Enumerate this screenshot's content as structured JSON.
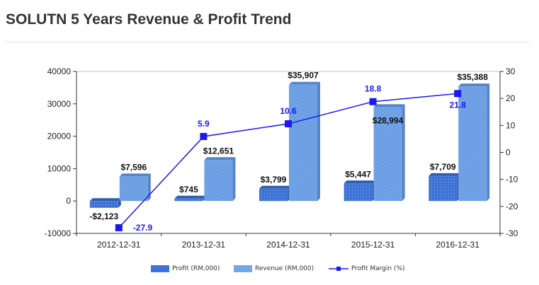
{
  "page": {
    "title": "SOLUTN 5 Years Revenue & Profit Trend"
  },
  "colors": {
    "profit": "#3e73d6",
    "revenue": "#75a6e8",
    "margin_line": "#1a1aee",
    "axis": "#333333",
    "plot_border": "#c0c0c0"
  },
  "chart_data": {
    "type": "bar",
    "categories": [
      "2012-12-31",
      "2013-12-31",
      "2014-12-31",
      "2015-12-31",
      "2016-12-31"
    ],
    "series": [
      {
        "name": "Profit (RM,000)",
        "kind": "bar",
        "axis": "left",
        "values": [
          -2123,
          745,
          3799,
          5447,
          7709
        ],
        "labels": [
          "-$2,123",
          "$745",
          "$3,799",
          "$5,447",
          "$7,709"
        ]
      },
      {
        "name": "Revenue (RM,000)",
        "kind": "bar",
        "axis": "left",
        "values": [
          7596,
          12651,
          35907,
          28994,
          35388
        ],
        "labels": [
          "$7,596",
          "$12,651",
          "$35,907",
          "$28,994",
          "$35,388"
        ]
      },
      {
        "name": "Profit Margin (%)",
        "kind": "line",
        "axis": "right",
        "values": [
          -27.9,
          5.9,
          10.6,
          18.8,
          21.8
        ],
        "labels": [
          "-27.9",
          "5.9",
          "10.6",
          "18.8",
          "21.8"
        ]
      }
    ],
    "y_left": {
      "lim": [
        -10000,
        40000
      ],
      "ticks": [
        -10000,
        0,
        10000,
        20000,
        30000,
        40000
      ],
      "tick_labels": [
        "-10000",
        "0",
        "10000",
        "20000",
        "30000",
        "40000"
      ]
    },
    "y_right": {
      "lim": [
        -30,
        30
      ],
      "ticks": [
        -30,
        -20,
        -10,
        0,
        10,
        20,
        30
      ],
      "tick_labels": [
        "-30",
        "-20",
        "-10",
        "0",
        "10",
        "20",
        "30"
      ]
    },
    "grid": false,
    "legend_position": "bottom-center"
  },
  "legend": {
    "profit": "Profit (RM,000)",
    "revenue": "Revenue (RM,000)",
    "margin": "Profit Margin (%)"
  }
}
